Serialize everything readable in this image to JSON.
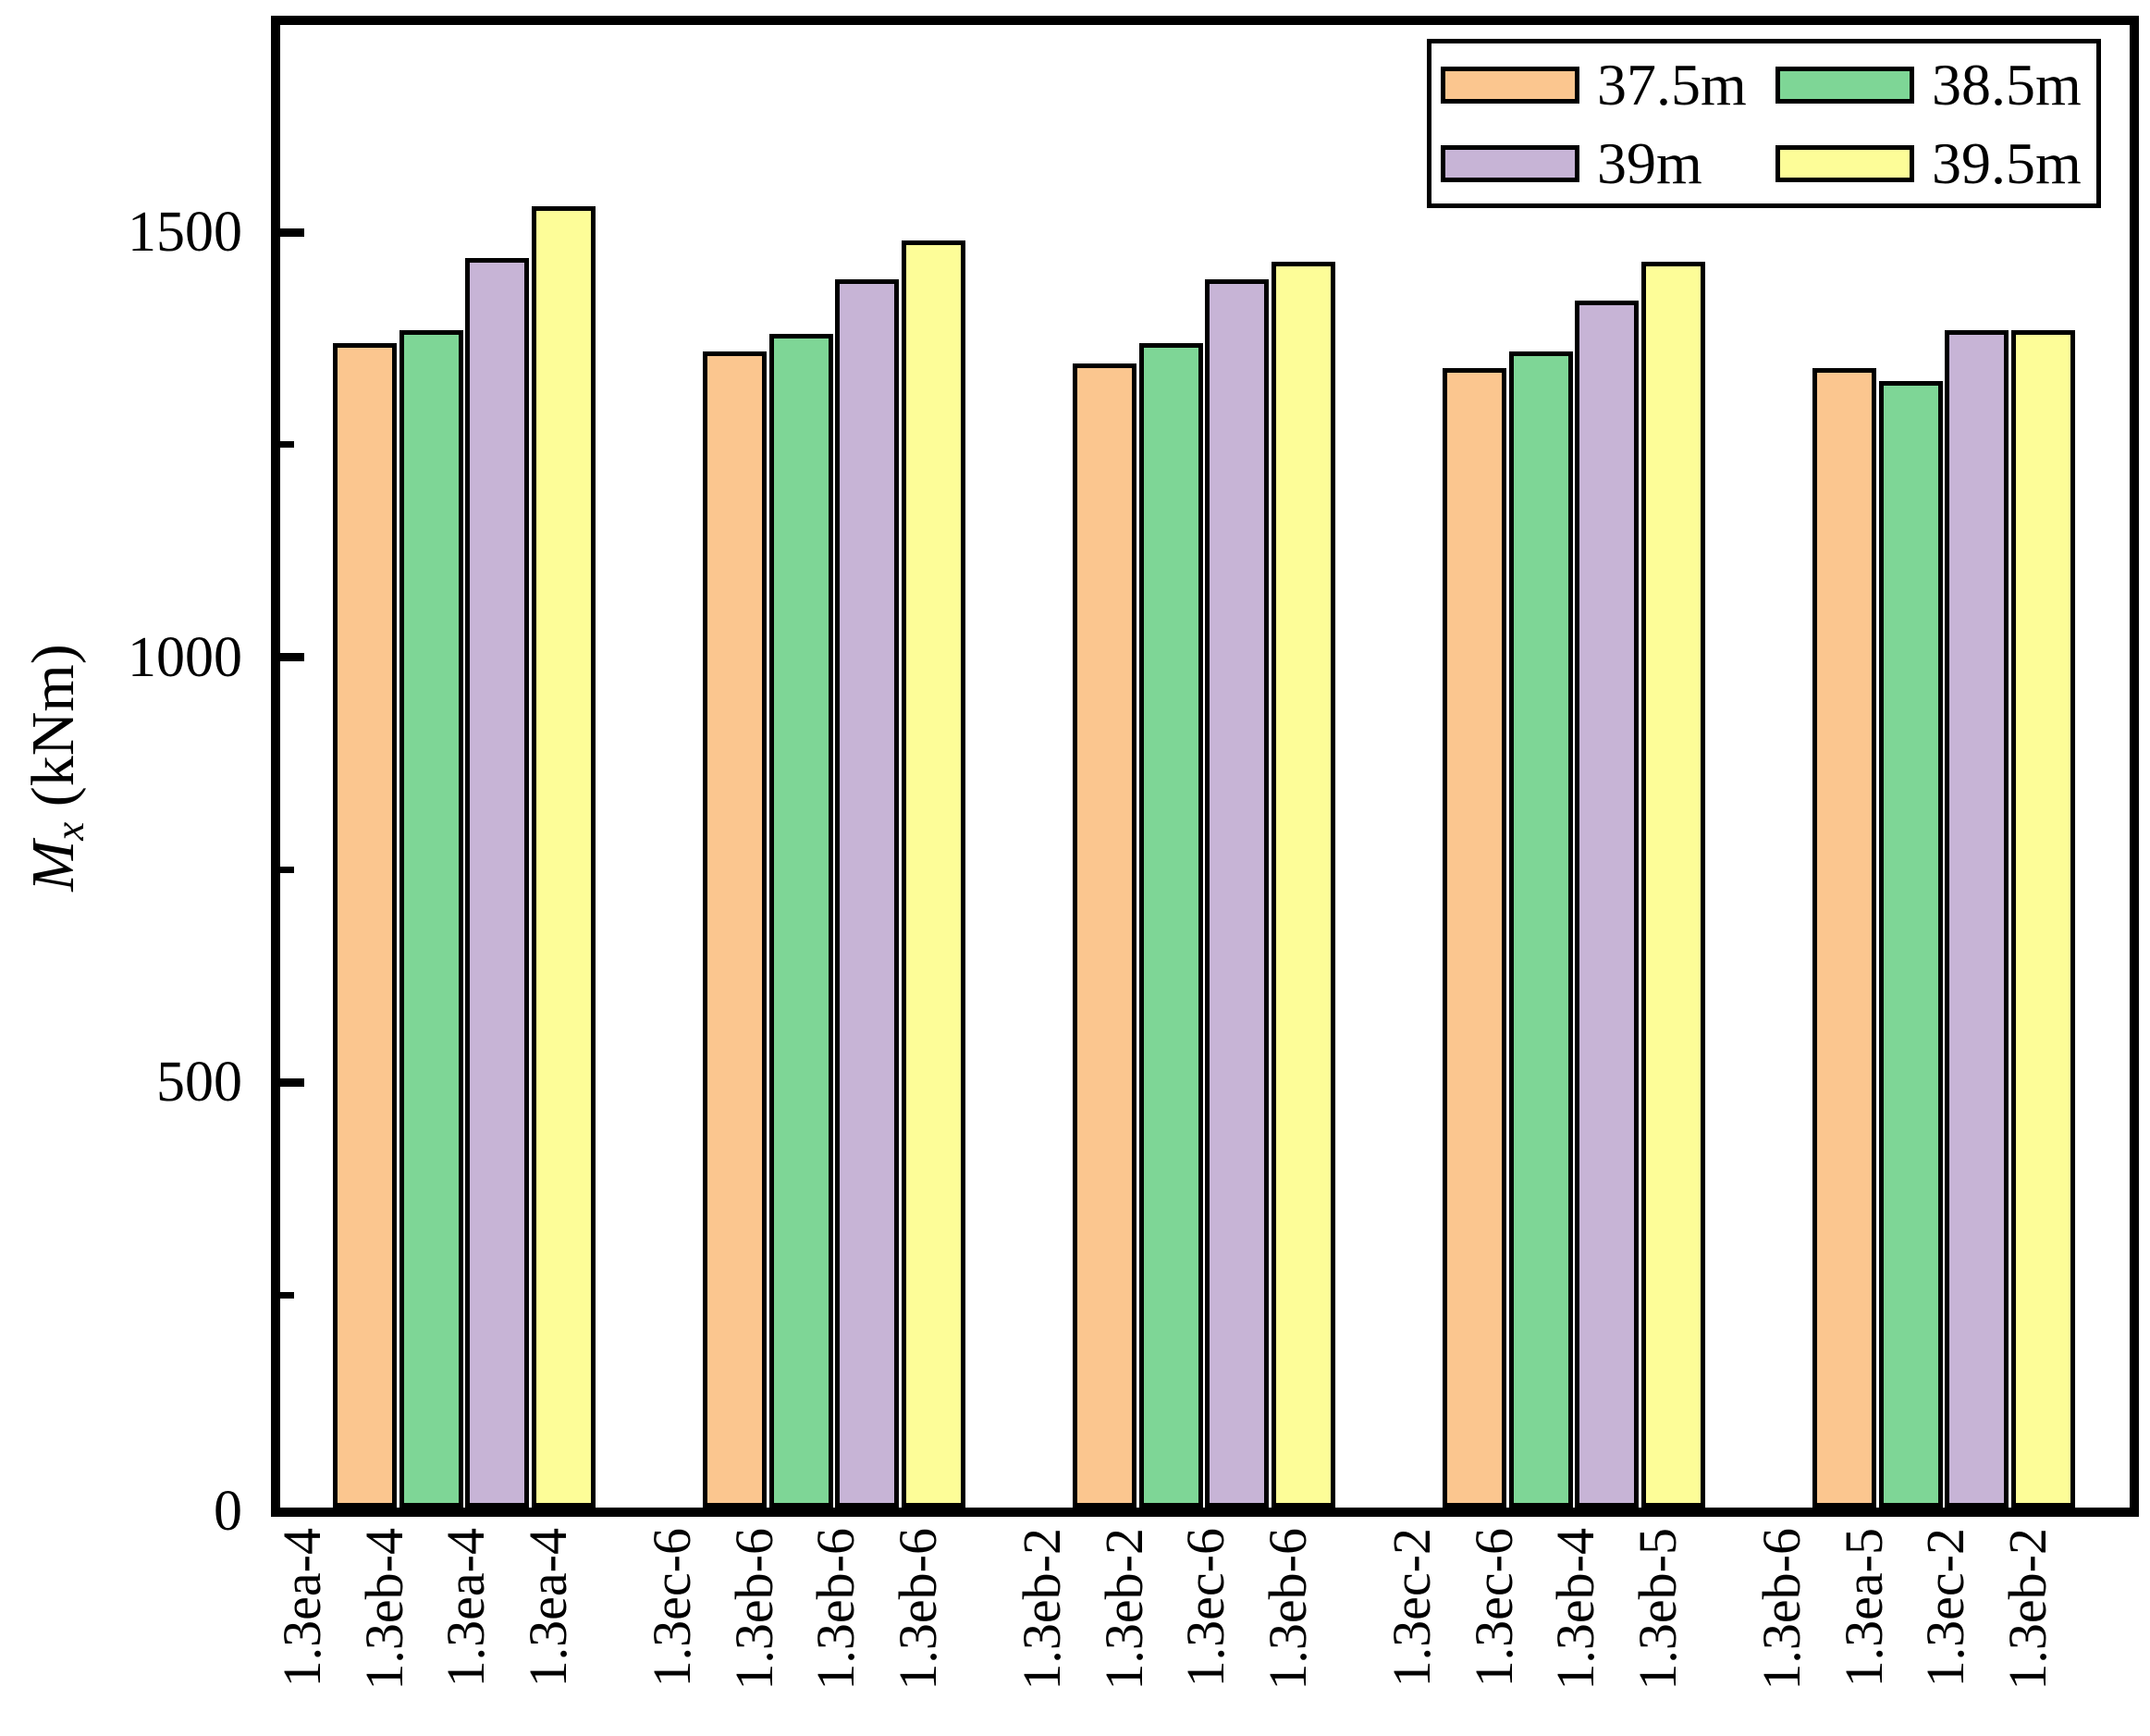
{
  "y_axis": {
    "title_main": "M",
    "title_sub": "x",
    "title_unit": " (kNm)"
  },
  "legend": {
    "items": [
      {
        "label": "37.5m",
        "color": "#FBC68F"
      },
      {
        "label": "38.5m",
        "color": "#7ED696"
      },
      {
        "label": "39m",
        "color": "#C7B4D6"
      },
      {
        "label": "39.5m",
        "color": "#FDFD98"
      }
    ]
  },
  "chart_data": {
    "type": "bar",
    "title": "",
    "xlabel": "",
    "ylabel": "Mx (kNm)",
    "ylim": [
      0,
      1750
    ],
    "yticks_major": [
      0,
      500,
      1000,
      1500
    ],
    "yticks_minor": [
      250,
      750,
      1250
    ],
    "grid": false,
    "legend_position": "top-right-inside",
    "series": [
      {
        "name": "37.5m",
        "color": "#FBC68F",
        "values": [
          1370,
          1360,
          1345,
          1340,
          1340
        ]
      },
      {
        "name": "38.5m",
        "color": "#7ED696",
        "values": [
          1385,
          1380,
          1370,
          1360,
          1325
        ]
      },
      {
        "name": "39m",
        "color": "#C7B4D6",
        "values": [
          1470,
          1445,
          1445,
          1420,
          1385
        ]
      },
      {
        "name": "39.5m",
        "color": "#FDFD98",
        "values": [
          1530,
          1490,
          1465,
          1465,
          1385
        ]
      }
    ],
    "group_tick_labels": [
      [
        "1.3ea-4",
        "1.3eb-4",
        "1.3ea-4",
        "1.3ea-4"
      ],
      [
        "1.3ec-6",
        "1.3eb-6",
        "1.3eb-6",
        "1.3eb-6"
      ],
      [
        "1.3eb-2",
        "1.3eb-2",
        "1.3ec-6",
        "1.3eb-6"
      ],
      [
        "1.3ec-2",
        "1.3ec-6",
        "1.3eb-4",
        "1.3eb-5"
      ],
      [
        "1.3eb-6",
        "1.3ea-5",
        "1.3ec-2",
        "1.3eb-2"
      ]
    ]
  }
}
